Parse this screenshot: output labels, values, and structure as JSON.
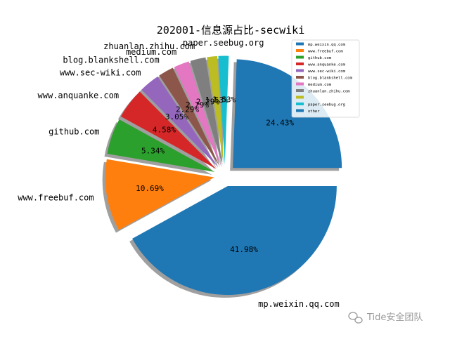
{
  "chart_data": {
    "type": "pie",
    "title": "202001-信息源占比-secwiki",
    "legend_position": "top-right",
    "slices": [
      {
        "label": "mp.weixin.qq.com",
        "legend": "mp.weixin.qq.com",
        "value": 41.98,
        "pct_text": "41.98%",
        "color": "#1f77b4",
        "explode": true,
        "outer_label": "mp.weixin.qq.com"
      },
      {
        "label": "www.freebuf.com",
        "legend": "www.freebuf.com",
        "value": 10.69,
        "pct_text": "10.69%",
        "color": "#ff7f0e",
        "explode": true,
        "outer_label": "www.freebuf.com"
      },
      {
        "label": "github.com",
        "legend": "github.com",
        "value": 5.34,
        "pct_text": "5.34%",
        "color": "#2ca02c",
        "explode": true,
        "outer_label": "github.com"
      },
      {
        "label": "www.anquanke.com",
        "legend": "www.anquanke.com",
        "value": 4.58,
        "pct_text": "4.58%",
        "color": "#d62728",
        "explode": true,
        "outer_label": "www.anquanke.com"
      },
      {
        "label": "www.sec-wiki.com",
        "legend": "www.sec-wiki.com",
        "value": 3.05,
        "pct_text": "3.05%",
        "color": "#9467bd",
        "explode": true,
        "outer_label": "www.sec-wiki.com"
      },
      {
        "label": "blog.blankshell.com",
        "legend": "blog.blankshell.com",
        "value": 2.29,
        "pct_text": "2.29%",
        "color": "#8c564b",
        "explode": true,
        "outer_label": "blog.blankshell.com"
      },
      {
        "label": "medium.com",
        "legend": "medium.com",
        "value": 2.29,
        "pct_text": "2.29%",
        "color": "#e377c2",
        "explode": true,
        "outer_label": "medium.com"
      },
      {
        "label": "zhuanlan.zhihu.com",
        "legend": "zhuanlan.zhihu.com",
        "value": 2.29,
        "pct_text": "2.29%",
        "color": "#7f7f7f",
        "explode": true,
        "outer_label": "zhuanlan.zhihu.com"
      },
      {
        "label": "",
        "legend": "",
        "value": 1.53,
        "pct_text": "1.53%",
        "color": "#bcbd22",
        "explode": true,
        "outer_label": ""
      },
      {
        "label": "paper.seebug.org",
        "legend": "paper.seebug.org",
        "value": 1.53,
        "pct_text": "1.53%",
        "color": "#17becf",
        "explode": true,
        "outer_label": "paper.seebug.org"
      },
      {
        "label": "other",
        "legend": "other",
        "value": 24.43,
        "pct_text": "24.43%",
        "color": "#1f77b4",
        "explode": true,
        "outer_label": ""
      }
    ]
  },
  "watermark": {
    "text": "Tide安全团队",
    "icon": "wechat-icon"
  }
}
